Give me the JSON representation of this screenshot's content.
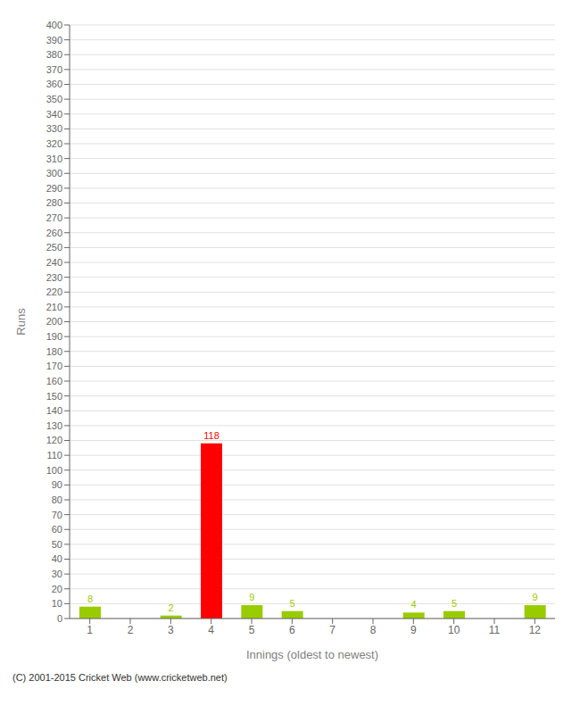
{
  "chart_data": {
    "type": "bar",
    "categories": [
      1,
      2,
      3,
      4,
      5,
      6,
      7,
      8,
      9,
      10,
      11,
      12
    ],
    "values": [
      8,
      0,
      2,
      118,
      9,
      5,
      0,
      0,
      4,
      5,
      0,
      9
    ],
    "colors": [
      "#99cc00",
      "#99cc00",
      "#99cc00",
      "#ff0000",
      "#99cc00",
      "#99cc00",
      "#99cc00",
      "#99cc00",
      "#99cc00",
      "#99cc00",
      "#99cc00",
      "#99cc00"
    ],
    "xlabel": "Innings (oldest to newest)",
    "ylabel": "Runs",
    "ylim": [
      0,
      400
    ],
    "yticks": [
      0,
      10,
      20,
      30,
      40,
      50,
      60,
      70,
      80,
      90,
      100,
      110,
      120,
      130,
      140,
      150,
      160,
      170,
      180,
      190,
      200,
      210,
      220,
      230,
      240,
      250,
      260,
      270,
      280,
      290,
      300,
      310,
      320,
      330,
      340,
      350,
      360,
      370,
      380,
      390,
      400
    ],
    "grid": true,
    "data_labels": true,
    "annotations": [
      "(C) 2001-2015 Cricket Web (www.cricketweb.net)"
    ]
  }
}
